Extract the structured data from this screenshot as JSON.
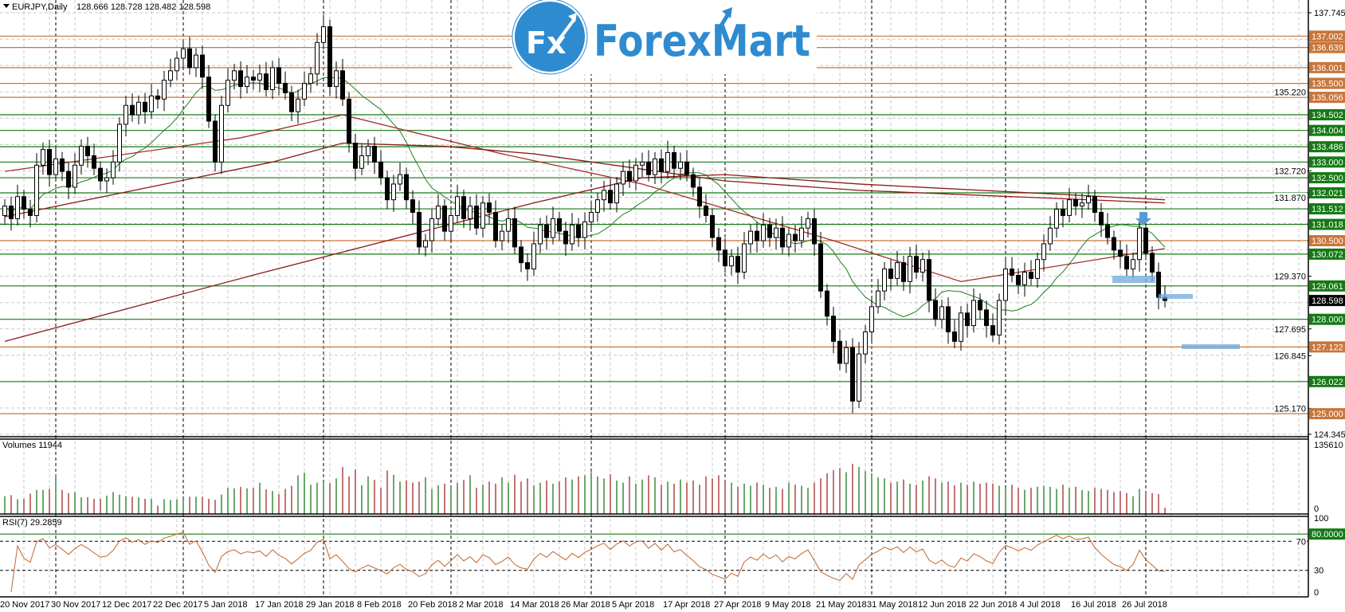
{
  "header": {
    "symbol": "EURJPY,Daily",
    "ohlc": "128.666 128.728 128.482 128.598"
  },
  "logo": {
    "mark": "Fx",
    "name": "ForexMart",
    "color": "#2f8bd0"
  },
  "colors": {
    "bull_body": "#ffffff",
    "bear_body": "#000000",
    "level_orange": "#c8763a",
    "level_green": "#157a15",
    "ma_fast": "#1e7d1e",
    "ma_mid": "#a0302a",
    "ma_slow": "#8b1a1a",
    "vol_up": "#1b7a1b",
    "vol_down": "#a02a2a",
    "rsi": "#c0652a",
    "highlight": "#6fa8dc"
  },
  "chart_data": [
    {
      "type": "candlestick",
      "title": "EURJPY,Daily",
      "ylim": [
        124.345,
        137.745
      ],
      "y_tick_labels": [
        "137.745",
        "135.220",
        "132.720",
        "131.870",
        "129.370",
        "127.695",
        "126.845",
        "125.170",
        "124.345"
      ],
      "grid_step": 0.8375,
      "x_labels": [
        "20 Nov 2017",
        "30 Nov 2017",
        "12 Dec 2017",
        "22 Dec 2017",
        "5 Jan 2018",
        "17 Jan 2018",
        "29 Jan 2018",
        "8 Feb 2018",
        "20 Feb 2018",
        "2 Mar 2018",
        "14 Mar 2018",
        "26 Mar 2018",
        "5 Apr 2018",
        "17 Apr 2018",
        "27 Apr 2018",
        "9 May 2018",
        "21 May 2018",
        "31 May 2018",
        "12 Jun 2018",
        "22 Jun 2018",
        "4 Jul 2018",
        "16 Jul 2018",
        "26 Jul 2018"
      ],
      "bars_per_label": 8,
      "month_separator_bars": [
        8,
        28,
        50,
        70,
        92,
        113,
        136,
        157,
        179
      ],
      "first_open": 131.3,
      "closes": [
        131.6,
        131.2,
        131.9,
        131.5,
        131.3,
        132.9,
        133.4,
        132.6,
        133.1,
        132.7,
        132.2,
        132.9,
        133.5,
        133.2,
        132.8,
        132.4,
        132.5,
        133.0,
        134.2,
        134.8,
        134.5,
        134.9,
        134.6,
        135.1,
        135.0,
        135.6,
        135.9,
        136.3,
        136.6,
        136.0,
        136.4,
        135.7,
        134.3,
        133.0,
        134.8,
        135.6,
        135.9,
        135.4,
        135.7,
        135.6,
        135.8,
        135.3,
        136.0,
        135.5,
        135.2,
        134.6,
        135.0,
        135.5,
        135.8,
        136.8,
        137.3,
        135.4,
        135.9,
        135.0,
        133.6,
        132.8,
        133.2,
        133.5,
        133.0,
        132.5,
        131.8,
        132.3,
        132.6,
        131.8,
        131.4,
        130.3,
        130.5,
        131.2,
        131.6,
        130.8,
        131.3,
        131.9,
        131.2,
        131.6,
        130.9,
        131.7,
        131.4,
        130.5,
        130.8,
        131.2,
        130.3,
        129.8,
        129.6,
        130.4,
        131.0,
        130.6,
        131.2,
        130.8,
        130.4,
        131.0,
        130.6,
        131.1,
        131.4,
        131.8,
        132.1,
        131.7,
        132.3,
        132.7,
        132.4,
        132.9,
        133.0,
        132.6,
        133.1,
        132.7,
        133.3,
        132.8,
        133.0,
        132.6,
        132.2,
        131.6,
        131.3,
        130.6,
        130.2,
        129.7,
        130.0,
        129.5,
        130.4,
        130.8,
        130.5,
        131.0,
        130.6,
        130.9,
        130.3,
        130.7,
        130.5,
        130.9,
        131.2,
        130.4,
        128.9,
        128.1,
        127.3,
        126.6,
        127.1,
        125.4,
        126.9,
        127.6,
        128.4,
        128.9,
        129.6,
        129.3,
        129.8,
        129.2,
        130.0,
        129.5,
        129.9,
        128.6,
        128.0,
        128.4,
        127.6,
        127.3,
        128.2,
        127.8,
        128.6,
        128.3,
        127.8,
        127.5,
        128.6,
        129.6,
        129.4,
        129.1,
        129.5,
        129.3,
        129.9,
        130.4,
        130.9,
        131.5,
        131.3,
        131.8,
        131.6,
        131.7,
        131.9,
        131.4,
        131.0,
        130.6,
        130.2,
        130.0,
        129.6,
        129.9,
        130.9,
        130.1,
        129.5,
        128.7,
        128.598
      ],
      "ma_fast_period": 14,
      "ma_mid_points": [
        [
          0,
          132.7
        ],
        [
          37,
          133.77
        ],
        [
          53,
          134.5
        ],
        [
          61,
          134.1
        ],
        [
          78,
          133.26
        ],
        [
          100,
          132.3
        ],
        [
          130,
          130.5
        ],
        [
          150,
          129.2
        ],
        [
          182,
          130.25
        ]
      ],
      "ma_slow_points": [
        [
          0,
          131.26
        ],
        [
          42,
          133.0
        ],
        [
          53,
          133.6
        ],
        [
          69,
          133.5
        ],
        [
          83,
          133.26
        ],
        [
          113,
          132.4
        ],
        [
          134,
          132.1
        ],
        [
          182,
          131.7
        ]
      ],
      "ma_long_points": [
        [
          0,
          127.3
        ],
        [
          40,
          129.46
        ],
        [
          83,
          131.7
        ],
        [
          100,
          132.5
        ],
        [
          113,
          132.6
        ],
        [
          134,
          132.3
        ],
        [
          182,
          131.8
        ]
      ],
      "levels": [
        {
          "price": "137.002",
          "color": "orange"
        },
        {
          "price": "136.639",
          "color": "orange"
        },
        {
          "price": "136.001",
          "color": "orange"
        },
        {
          "price": "135.500",
          "color": "orange"
        },
        {
          "price": "135.056",
          "color": "orange"
        },
        {
          "price": "134.502",
          "color": "green"
        },
        {
          "price": "134.004",
          "color": "green"
        },
        {
          "price": "133.486",
          "color": "green"
        },
        {
          "price": "133.000",
          "color": "green"
        },
        {
          "price": "132.500",
          "color": "green"
        },
        {
          "price": "132.021",
          "color": "green"
        },
        {
          "price": "131.512",
          "color": "green"
        },
        {
          "price": "131.018",
          "color": "green"
        },
        {
          "price": "130.500",
          "color": "orange"
        },
        {
          "price": "130.072",
          "color": "green"
        },
        {
          "price": "129.061",
          "color": "green"
        },
        {
          "price": "128.000",
          "color": "green"
        },
        {
          "price": "127.122",
          "color": "orange"
        },
        {
          "price": "126.022",
          "color": "green"
        },
        {
          "price": "125.000",
          "color": "orange"
        }
      ],
      "current_price": "128.598"
    },
    {
      "type": "bar",
      "title": "Volumes 11944",
      "ylim": [
        0,
        135610
      ],
      "y_tick_labels": [
        "135610",
        "0"
      ],
      "values_thousands": [
        34,
        36,
        28,
        29,
        39,
        46,
        46,
        48,
        75,
        46,
        40,
        42,
        32,
        32,
        29,
        29,
        35,
        42,
        37,
        34,
        33,
        32,
        29,
        29,
        16,
        28,
        27,
        28,
        30,
        33,
        33,
        33,
        29,
        27,
        37,
        50,
        49,
        52,
        49,
        50,
        60,
        47,
        44,
        38,
        48,
        54,
        74,
        79,
        56,
        60,
        62,
        59,
        68,
        90,
        72,
        85,
        55,
        72,
        65,
        50,
        83,
        75,
        62,
        64,
        60,
        62,
        70,
        48,
        55,
        58,
        52,
        60,
        65,
        74,
        50,
        56,
        62,
        58,
        70,
        60,
        75,
        62,
        68,
        55,
        60,
        64,
        58,
        62,
        70,
        66,
        72,
        74,
        80,
        72,
        68,
        76,
        64,
        60,
        72,
        58,
        66,
        74,
        70,
        56,
        62,
        58,
        66,
        60,
        64,
        56,
        72,
        68,
        74,
        62,
        60,
        52,
        58,
        54,
        60,
        56,
        50,
        52,
        48,
        60,
        56,
        54,
        50,
        60,
        68,
        78,
        84,
        88,
        80,
        96,
        90,
        82,
        78,
        70,
        68,
        60,
        62,
        66,
        58,
        56,
        64,
        72,
        68,
        60,
        62,
        55,
        60,
        56,
        62,
        58,
        60,
        58,
        54,
        50,
        56,
        50,
        46,
        50,
        52,
        54,
        52,
        48,
        56,
        50,
        52,
        46,
        44,
        50,
        48,
        46,
        42,
        44,
        40,
        34,
        48,
        40,
        40,
        38,
        12
      ]
    },
    {
      "type": "line",
      "title": "RSI(7) 29.2859",
      "period": 7,
      "ylim": [
        0,
        100
      ],
      "y_tick_labels": [
        "100",
        "70",
        "30",
        "0"
      ],
      "level_label": "80.0000",
      "level": 80
    }
  ]
}
